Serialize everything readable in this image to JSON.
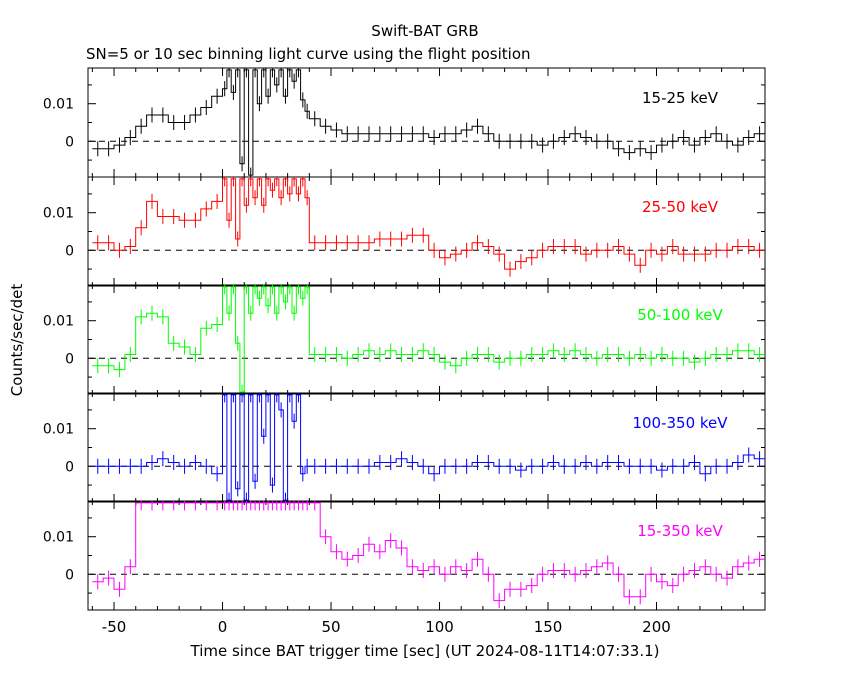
{
  "chart_data": {
    "type": "line",
    "title": "Swift-BAT GRB",
    "subtitle": "SN=5 or 10 sec binning light curve using the flight position",
    "xlabel": "Time since BAT trigger time [sec] (UT 2024-08-11T14:07:33.1)",
    "ylabel": "Counts/sec/det",
    "xlim": [
      -62,
      250
    ],
    "x_ticks": [
      "-50",
      "0",
      "50",
      "100",
      "150",
      "200"
    ],
    "x_tick_values": [
      -50,
      0,
      50,
      100,
      150,
      200
    ],
    "y_ticks": [
      "0",
      "0.01"
    ],
    "y_tick_values": [
      0,
      0.01
    ],
    "panels": [
      {
        "name": "15-25 keV",
        "color": "#000000",
        "ylim": [
          -0.0095,
          0.0195
        ],
        "series": {
          "x": [
            -60,
            -55,
            -50,
            -45,
            -40,
            -35,
            -30,
            -25,
            -20,
            -15,
            -10,
            -5,
            0,
            2,
            4,
            6,
            8,
            10,
            12,
            14,
            16,
            18,
            20,
            22,
            24,
            26,
            28,
            30,
            32,
            34,
            36,
            38,
            40,
            45,
            50,
            55,
            60,
            65,
            70,
            75,
            80,
            85,
            90,
            95,
            100,
            105,
            110,
            115,
            120,
            125,
            130,
            135,
            140,
            145,
            150,
            155,
            160,
            165,
            170,
            175,
            180,
            185,
            190,
            195,
            200,
            205,
            210,
            215,
            220,
            225,
            230,
            235,
            240,
            245
          ],
          "y": [
            -0.002,
            -0.002,
            -0.001,
            0.001,
            0.004,
            0.007,
            0.007,
            0.005,
            0.005,
            0.007,
            0.009,
            0.012,
            0.014,
            0.019,
            0.013,
            0.019,
            -0.006,
            0.019,
            -0.009,
            0.019,
            0.01,
            0.019,
            0.012,
            0.019,
            0.015,
            0.019,
            0.012,
            0.019,
            0.016,
            0.019,
            0.011,
            0.008,
            0.006,
            0.004,
            0.003,
            0.002,
            0.002,
            0.002,
            0.002,
            0.002,
            0.002,
            0.002,
            0.002,
            0.001,
            0.002,
            0.002,
            0.003,
            0.004,
            0.002,
            0.0,
            0.0,
            0.0,
            0.0,
            -0.001,
            0.0,
            0.001,
            0.002,
            0.001,
            0.0,
            0.0,
            -0.002,
            -0.003,
            -0.002,
            -0.003,
            -0.001,
            0.0,
            0.001,
            -0.001,
            0.001,
            0.002,
            0.0,
            -0.001,
            0.001,
            0.002
          ]
        }
      },
      {
        "name": "25-50 keV",
        "color": "#ff0000",
        "ylim": [
          -0.0095,
          0.0195
        ],
        "series": {
          "x": [
            -60,
            -55,
            -50,
            -45,
            -40,
            -35,
            -30,
            -25,
            -20,
            -15,
            -10,
            -5,
            0,
            2,
            4,
            6,
            8,
            10,
            12,
            14,
            16,
            18,
            20,
            22,
            24,
            26,
            28,
            30,
            32,
            34,
            36,
            38,
            40,
            45,
            50,
            55,
            60,
            65,
            70,
            75,
            80,
            85,
            90,
            95,
            100,
            105,
            110,
            115,
            120,
            125,
            130,
            135,
            140,
            145,
            150,
            155,
            160,
            165,
            170,
            175,
            180,
            185,
            190,
            195,
            200,
            205,
            210,
            215,
            220,
            225,
            230,
            235,
            240,
            245
          ],
          "y": [
            0.002,
            0.002,
            0.0,
            0.001,
            0.006,
            0.013,
            0.009,
            0.009,
            0.008,
            0.008,
            0.011,
            0.013,
            0.019,
            0.008,
            0.019,
            0.003,
            0.019,
            0.012,
            0.019,
            0.014,
            0.019,
            0.012,
            0.019,
            0.016,
            0.019,
            0.014,
            0.019,
            0.015,
            0.019,
            0.015,
            0.019,
            0.014,
            0.002,
            0.002,
            0.002,
            0.002,
            0.002,
            0.002,
            0.003,
            0.003,
            0.003,
            0.004,
            0.004,
            0.0,
            -0.002,
            -0.001,
            0.0,
            0.002,
            0.001,
            -0.001,
            -0.005,
            -0.003,
            -0.002,
            0.0,
            0.001,
            0.001,
            0.001,
            -0.001,
            0.0,
            0.0,
            0.001,
            -0.001,
            -0.004,
            0.0,
            -0.001,
            0.001,
            -0.001,
            -0.001,
            -0.001,
            0.0,
            0.0,
            0.001,
            0.001,
            0.0
          ]
        }
      },
      {
        "name": "50-100 keV",
        "color": "#00ff00",
        "ylim": [
          -0.0095,
          0.0195
        ],
        "series": {
          "x": [
            -60,
            -55,
            -50,
            -45,
            -40,
            -35,
            -30,
            -25,
            -20,
            -15,
            -10,
            -5,
            0,
            2,
            4,
            6,
            8,
            10,
            12,
            14,
            16,
            18,
            20,
            22,
            24,
            26,
            28,
            30,
            32,
            34,
            36,
            38,
            40,
            45,
            50,
            55,
            60,
            65,
            70,
            75,
            80,
            85,
            90,
            95,
            100,
            105,
            110,
            115,
            120,
            125,
            130,
            135,
            140,
            145,
            150,
            155,
            160,
            165,
            170,
            175,
            180,
            185,
            190,
            195,
            200,
            205,
            210,
            215,
            220,
            225,
            230,
            235,
            240,
            245
          ],
          "y": [
            -0.002,
            -0.002,
            -0.003,
            0.001,
            0.011,
            0.012,
            0.011,
            0.004,
            0.003,
            0.001,
            0.008,
            0.009,
            0.019,
            0.012,
            0.019,
            0.004,
            -0.009,
            0.019,
            0.012,
            0.019,
            0.016,
            0.019,
            0.014,
            0.019,
            0.012,
            0.019,
            0.015,
            0.019,
            0.012,
            0.019,
            0.016,
            0.019,
            0.001,
            0.001,
            0.001,
            0.0,
            0.001,
            0.002,
            0.001,
            0.002,
            0.001,
            0.001,
            0.002,
            0.001,
            -0.001,
            -0.002,
            0.0,
            0.001,
            0.001,
            -0.001,
            0.0,
            0.0,
            0.001,
            0.001,
            0.002,
            0.001,
            0.002,
            0.001,
            0.0,
            0.001,
            0.001,
            0.0,
            0.001,
            0.0,
            0.001,
            0.0,
            0.0,
            -0.001,
            0.0,
            0.001,
            0.001,
            0.002,
            0.002,
            0.001
          ]
        }
      },
      {
        "name": "100-350 keV",
        "color": "#0000ff",
        "ylim": [
          -0.0095,
          0.0195
        ],
        "series": {
          "x": [
            -60,
            -55,
            -50,
            -45,
            -40,
            -35,
            -30,
            -25,
            -20,
            -15,
            -10,
            -5,
            0,
            2,
            4,
            6,
            8,
            10,
            12,
            14,
            16,
            18,
            20,
            22,
            24,
            26,
            28,
            30,
            32,
            34,
            36,
            38,
            40,
            45,
            50,
            55,
            60,
            65,
            70,
            75,
            80,
            85,
            90,
            95,
            100,
            105,
            110,
            115,
            120,
            125,
            130,
            135,
            140,
            145,
            150,
            155,
            160,
            165,
            170,
            175,
            180,
            185,
            190,
            195,
            200,
            205,
            210,
            215,
            220,
            225,
            230,
            235,
            240,
            245
          ],
          "y": [
            0.0,
            0.0,
            0.0,
            0.0,
            0.0,
            0.001,
            0.002,
            0.001,
            0.0,
            0.001,
            0.0,
            -0.002,
            0.019,
            -0.009,
            0.019,
            -0.006,
            0.019,
            -0.009,
            0.019,
            -0.004,
            0.019,
            0.008,
            0.019,
            -0.005,
            0.019,
            0.015,
            -0.009,
            0.019,
            0.012,
            0.019,
            -0.002,
            0.0,
            0.0,
            0.0,
            0.0,
            0.0,
            0.0,
            0.0,
            0.001,
            0.001,
            0.002,
            0.001,
            0.0,
            -0.002,
            0.0,
            0.0,
            0.0,
            0.001,
            0.001,
            0.0,
            0.0,
            -0.001,
            0.0,
            0.0,
            0.001,
            0.0,
            0.0,
            0.001,
            0.0,
            0.001,
            0.001,
            0.0,
            0.0,
            0.0,
            -0.001,
            0.0,
            0.0,
            0.001,
            -0.002,
            0.0,
            0.0,
            0.001,
            0.003,
            0.002
          ]
        }
      },
      {
        "name": "15-350 keV",
        "color": "#ff00ff",
        "ylim": [
          -0.0095,
          0.0195
        ],
        "series": {
          "x": [
            -60,
            -55,
            -50,
            -45,
            -40,
            -35,
            -30,
            -25,
            -20,
            -15,
            -10,
            -5,
            0,
            2,
            4,
            6,
            8,
            10,
            12,
            14,
            16,
            18,
            20,
            22,
            24,
            26,
            28,
            30,
            32,
            34,
            36,
            38,
            40,
            45,
            50,
            55,
            60,
            65,
            70,
            75,
            80,
            85,
            90,
            95,
            100,
            105,
            110,
            115,
            120,
            125,
            130,
            135,
            140,
            145,
            150,
            155,
            160,
            165,
            170,
            175,
            180,
            185,
            190,
            195,
            200,
            205,
            210,
            215,
            220,
            225,
            230,
            235,
            240,
            245
          ],
          "y": [
            -0.002,
            -0.001,
            -0.004,
            0.002,
            0.019,
            0.019,
            0.019,
            0.019,
            0.019,
            0.019,
            0.019,
            0.019,
            0.019,
            0.019,
            0.019,
            0.019,
            0.019,
            0.019,
            0.019,
            0.019,
            0.019,
            0.019,
            0.019,
            0.019,
            0.019,
            0.019,
            0.019,
            0.019,
            0.019,
            0.019,
            0.019,
            0.019,
            0.019,
            0.01,
            0.006,
            0.004,
            0.005,
            0.008,
            0.006,
            0.009,
            0.007,
            0.002,
            0.001,
            0.002,
            0.0,
            0.002,
            0.001,
            0.004,
            0.0,
            -0.007,
            -0.004,
            -0.004,
            -0.003,
            0.0,
            0.001,
            0.001,
            0.0,
            0.001,
            0.002,
            0.003,
            0.0,
            -0.006,
            -0.006,
            0.0,
            -0.002,
            -0.003,
            0.0,
            0.001,
            0.002,
            0.0,
            -0.001,
            0.002,
            0.003,
            0.004
          ]
        }
      }
    ]
  }
}
